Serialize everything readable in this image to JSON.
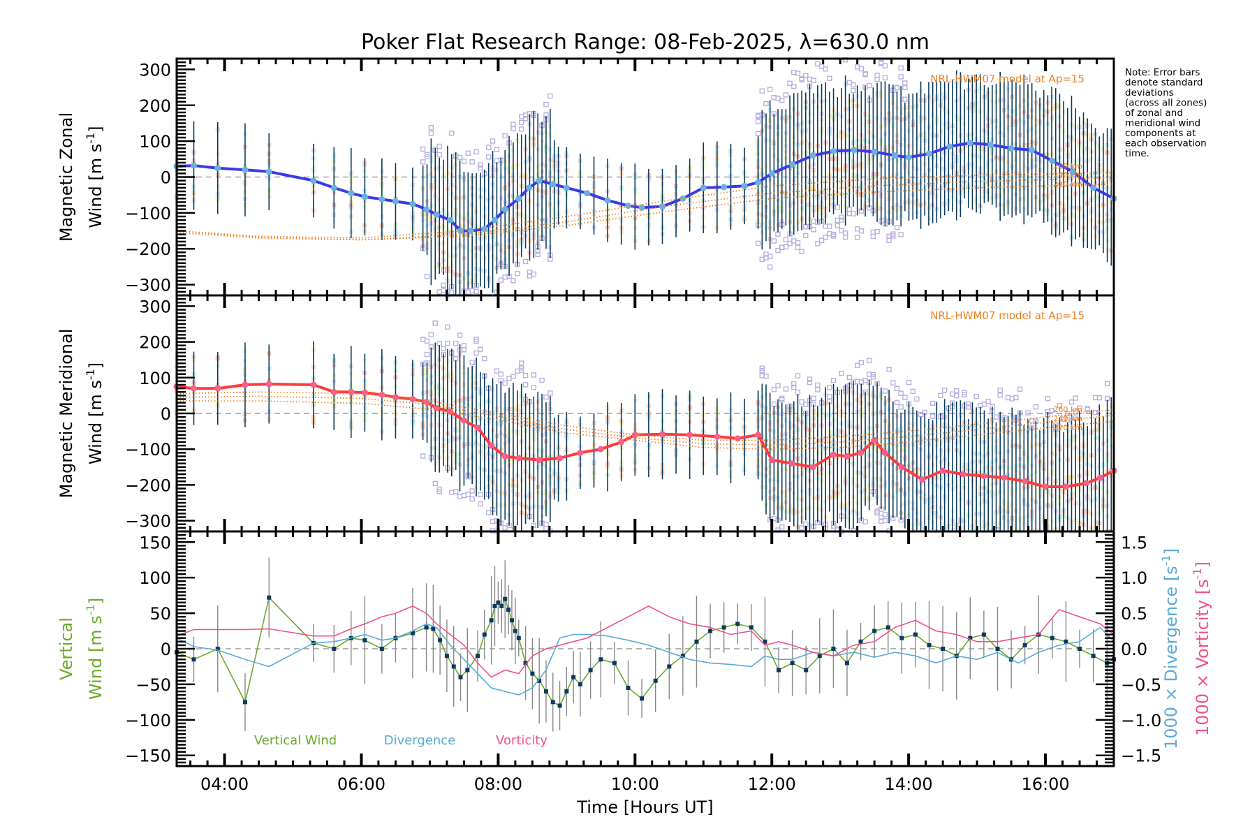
{
  "chart_data": [
    {
      "panel": "zonal",
      "type": "line",
      "title": "Poker Flat Research Range: 08-Feb-2025, λ=630.0 nm",
      "ylabel_line1": "Magnetic Zonal",
      "ylabel_line2": "Wind [m s",
      "ylabel_sup": "-1",
      "ylabel_close": "]",
      "ylim": [
        -330,
        330
      ],
      "yticks": [
        -300,
        -200,
        -100,
        0,
        100,
        200,
        300
      ],
      "ytick_labels": [
        "−300",
        "−200",
        "−100",
        "0",
        "100",
        "200",
        "300"
      ],
      "xlim": [
        3.3,
        17.0
      ],
      "model_label": "NRL-HWM07 model at Ap=15",
      "model_altitudes": [
        "260 km",
        "240 km",
        "220 km"
      ],
      "series": [
        {
          "name": "Mean zonal wind",
          "color": "#3a3ae8",
          "x": [
            3.3,
            3.55,
            3.9,
            4.3,
            4.65,
            5.3,
            5.6,
            5.85,
            6.05,
            6.3,
            6.5,
            6.75,
            6.95,
            7.1,
            7.3,
            7.45,
            7.6,
            7.8,
            7.95,
            8.1,
            8.3,
            8.45,
            8.6,
            8.8,
            9.0,
            9.3,
            9.6,
            9.9,
            10.1,
            10.4,
            10.7,
            11.0,
            11.3,
            11.6,
            11.8,
            12.0,
            12.3,
            12.6,
            12.9,
            13.2,
            13.5,
            13.8,
            14.0,
            14.3,
            14.6,
            14.9,
            15.2,
            15.5,
            15.8,
            16.1,
            16.4,
            16.7,
            17.0
          ],
          "values": [
            30,
            32,
            25,
            20,
            15,
            -10,
            -30,
            -45,
            -55,
            -62,
            -68,
            -75,
            -90,
            -105,
            -120,
            -150,
            -150,
            -145,
            -120,
            -90,
            -60,
            -30,
            -10,
            -20,
            -30,
            -45,
            -65,
            -80,
            -85,
            -82,
            -60,
            -30,
            -28,
            -25,
            -15,
            10,
            35,
            60,
            72,
            75,
            70,
            60,
            55,
            65,
            85,
            95,
            90,
            80,
            75,
            45,
            15,
            -30,
            -60
          ]
        },
        {
          "name": "NRL-HWM07 260 km",
          "color": "#f08020",
          "x": [
            3.3,
            4.5,
            6.0,
            7.5,
            9.0,
            10.5,
            12.0,
            13.5,
            15.0,
            16.5,
            17.0
          ],
          "values": [
            -150,
            -165,
            -170,
            -150,
            -110,
            -65,
            -25,
            -5,
            5,
            10,
            12
          ]
        },
        {
          "name": "NRL-HWM07 240 km",
          "color": "#f08020",
          "x": [
            3.3,
            4.5,
            6.0,
            7.5,
            9.0,
            10.5,
            12.0,
            13.5,
            15.0,
            16.5,
            17.0
          ],
          "values": [
            -150,
            -168,
            -175,
            -160,
            -125,
            -80,
            -45,
            -25,
            -12,
            -5,
            -2
          ]
        },
        {
          "name": "NRL-HWM07 220 km",
          "color": "#f08020",
          "x": [
            3.3,
            4.5,
            6.0,
            7.5,
            9.0,
            10.5,
            12.0,
            13.5,
            15.0,
            16.5,
            17.0
          ],
          "values": [
            -155,
            -170,
            -175,
            -165,
            -135,
            -95,
            -60,
            -42,
            -30,
            -22,
            -20
          ]
        }
      ],
      "error_bar_std_dev_m_s": "approx 90-220"
    },
    {
      "panel": "meridional",
      "type": "line",
      "ylabel_line1": "Magnetic Meridional",
      "ylabel_line2": "Wind [m s",
      "ylabel_sup": "-1",
      "ylabel_close": "]",
      "ylim": [
        -330,
        330
      ],
      "yticks": [
        -300,
        -200,
        -100,
        0,
        100,
        200,
        300
      ],
      "ytick_labels": [
        "−300",
        "−200",
        "−100",
        "0",
        "100",
        "200",
        "300"
      ],
      "xlim": [
        3.3,
        17.0
      ],
      "model_label": "NRL-HWM07 model at Ap=15",
      "model_altitudes": [
        "260 km",
        "240 km",
        "220 km"
      ],
      "series": [
        {
          "name": "Mean meridional wind",
          "color": "#ff3a3a",
          "x": [
            3.3,
            3.55,
            3.9,
            4.3,
            4.65,
            5.3,
            5.6,
            5.85,
            6.05,
            6.3,
            6.5,
            6.75,
            6.95,
            7.1,
            7.3,
            7.5,
            7.7,
            7.9,
            8.1,
            8.3,
            8.6,
            8.9,
            9.2,
            9.5,
            9.8,
            10.0,
            10.4,
            10.8,
            11.2,
            11.5,
            11.8,
            12.0,
            12.3,
            12.6,
            12.9,
            13.1,
            13.3,
            13.5,
            13.65,
            13.9,
            14.2,
            14.5,
            14.8,
            15.1,
            15.4,
            15.7,
            16.0,
            16.3,
            16.6,
            16.8,
            17.0
          ],
          "values": [
            75,
            70,
            70,
            80,
            82,
            80,
            60,
            60,
            58,
            52,
            45,
            40,
            32,
            15,
            5,
            -20,
            -40,
            -90,
            -120,
            -125,
            -130,
            -125,
            -110,
            -100,
            -80,
            -60,
            -58,
            -60,
            -65,
            -70,
            -60,
            -130,
            -140,
            -150,
            -115,
            -120,
            -110,
            -75,
            -110,
            -150,
            -185,
            -160,
            -170,
            -175,
            -180,
            -190,
            -205,
            -205,
            -195,
            -180,
            -160
          ]
        },
        {
          "name": "NRL-HWM07 260 km",
          "color": "#f08020",
          "x": [
            3.3,
            4.5,
            6.0,
            7.0,
            8.0,
            9.0,
            10.0,
            11.0,
            12.0,
            13.0,
            14.0,
            15.0,
            16.0,
            17.0
          ],
          "values": [
            55,
            60,
            55,
            35,
            0,
            -35,
            -60,
            -75,
            -75,
            -65,
            -50,
            -30,
            -10,
            10
          ]
        },
        {
          "name": "NRL-HWM07 240 km",
          "color": "#f08020",
          "x": [
            3.3,
            4.5,
            6.0,
            7.0,
            8.0,
            9.0,
            10.0,
            11.0,
            12.0,
            13.0,
            14.0,
            15.0,
            16.0,
            17.0
          ],
          "values": [
            45,
            48,
            42,
            25,
            -8,
            -45,
            -68,
            -85,
            -88,
            -80,
            -65,
            -45,
            -25,
            -5
          ]
        },
        {
          "name": "NRL-HWM07 220 km",
          "color": "#f08020",
          "x": [
            3.3,
            4.5,
            6.0,
            7.0,
            8.0,
            9.0,
            10.0,
            11.0,
            12.0,
            13.0,
            14.0,
            15.0,
            16.0,
            17.0
          ],
          "values": [
            35,
            35,
            28,
            12,
            -18,
            -55,
            -75,
            -95,
            -100,
            -95,
            -80,
            -60,
            -40,
            -22
          ]
        }
      ]
    },
    {
      "panel": "vertical",
      "type": "line",
      "xlabel": "Time [Hours UT]",
      "xlim": [
        3.3,
        17.0
      ],
      "xticks": [
        4,
        6,
        8,
        10,
        12,
        14,
        16
      ],
      "xtick_labels": [
        "04:00",
        "06:00",
        "08:00",
        "10:00",
        "12:00",
        "14:00",
        "16:00"
      ],
      "ylabel_line1": "Vertical",
      "ylabel_line2": "Wind [m s",
      "ylabel_sup": "-1",
      "ylabel_close": "]",
      "ylim": [
        -165,
        165
      ],
      "yticks": [
        -150,
        -100,
        -50,
        0,
        50,
        100,
        150
      ],
      "ytick_labels": [
        "−150",
        "−100",
        "−50",
        "0",
        "50",
        "100",
        "150"
      ],
      "y2lim": [
        -1.65,
        1.65
      ],
      "y2ticks": [
        -1.5,
        -1.0,
        -0.5,
        0.0,
        0.5,
        1.0,
        1.5
      ],
      "y2tick_labels": [
        "−1.5",
        "−1.0",
        "−0.5",
        "0.0",
        "0.5",
        "1.0",
        "1.5"
      ],
      "y2label_div": "1000 × Divergence [s",
      "y2label_vort": "1000 × Vorticity [s",
      "y2label_sup": "-1",
      "y2label_close": "]",
      "legend": [
        "Vertical Wind",
        "Divergence",
        "Vorticity"
      ],
      "legend_position": "bottom-left",
      "series": [
        {
          "name": "Vertical Wind",
          "color": "#6aaa2a",
          "axis": "left",
          "x": [
            3.3,
            3.55,
            3.9,
            4.3,
            4.65,
            5.3,
            5.6,
            5.85,
            6.05,
            6.3,
            6.5,
            6.75,
            6.95,
            7.05,
            7.15,
            7.25,
            7.35,
            7.45,
            7.55,
            7.7,
            7.8,
            7.9,
            7.95,
            8.0,
            8.05,
            8.1,
            8.15,
            8.2,
            8.25,
            8.3,
            8.4,
            8.5,
            8.6,
            8.7,
            8.8,
            8.9,
            9.0,
            9.1,
            9.2,
            9.35,
            9.5,
            9.7,
            9.9,
            10.1,
            10.3,
            10.5,
            10.7,
            10.9,
            11.1,
            11.3,
            11.5,
            11.7,
            11.9,
            12.1,
            12.3,
            12.5,
            12.7,
            12.9,
            13.1,
            13.3,
            13.5,
            13.7,
            13.9,
            14.1,
            14.3,
            14.5,
            14.7,
            14.9,
            15.1,
            15.3,
            15.5,
            15.7,
            15.9,
            16.1,
            16.3,
            16.5,
            16.7,
            16.9,
            17.0
          ],
          "values": [
            -5,
            -15,
            0,
            -75,
            72,
            8,
            0,
            15,
            12,
            0,
            15,
            22,
            30,
            28,
            12,
            -10,
            -25,
            -40,
            -30,
            -10,
            20,
            40,
            60,
            65,
            60,
            70,
            55,
            40,
            25,
            15,
            -20,
            -35,
            -45,
            -60,
            -75,
            -80,
            -60,
            -40,
            -50,
            -30,
            -15,
            -20,
            -55,
            -70,
            -45,
            -25,
            -10,
            10,
            25,
            30,
            35,
            30,
            10,
            -30,
            -20,
            -30,
            -10,
            0,
            -20,
            10,
            25,
            30,
            15,
            20,
            5,
            0,
            -10,
            15,
            20,
            0,
            -15,
            5,
            20,
            15,
            10,
            0,
            -10,
            -20,
            -15
          ]
        },
        {
          "name": "Divergence",
          "color": "#5aaad6",
          "axis": "right",
          "x": [
            3.3,
            3.55,
            3.9,
            4.3,
            4.65,
            5.3,
            5.6,
            5.85,
            6.05,
            6.3,
            6.5,
            6.75,
            6.95,
            7.1,
            7.3,
            7.5,
            7.7,
            7.9,
            8.1,
            8.3,
            8.5,
            8.7,
            8.9,
            9.1,
            9.3,
            9.6,
            9.9,
            10.2,
            10.5,
            10.8,
            11.1,
            11.4,
            11.7,
            11.9,
            12.1,
            12.3,
            12.6,
            12.9,
            13.2,
            13.5,
            13.8,
            14.1,
            14.4,
            14.7,
            15.0,
            15.3,
            15.6,
            15.9,
            16.2,
            16.5,
            16.8,
            17.0
          ],
          "values": [
            0.15,
            0.03,
            -0.02,
            -0.15,
            -0.25,
            0.08,
            0.1,
            0.15,
            0.2,
            0.12,
            0.15,
            0.25,
            0.35,
            0.3,
            0.05,
            -0.15,
            -0.35,
            -0.55,
            -0.6,
            -0.65,
            -0.55,
            -0.3,
            0.15,
            0.2,
            0.2,
            0.18,
            0.12,
            0.05,
            -0.05,
            -0.15,
            -0.2,
            -0.22,
            -0.25,
            -0.1,
            -0.15,
            -0.15,
            -0.05,
            -0.1,
            -0.05,
            -0.12,
            -0.05,
            -0.1,
            -0.2,
            -0.1,
            -0.15,
            -0.05,
            -0.2,
            -0.05,
            0.05,
            0.1,
            0.3,
            0.1
          ]
        },
        {
          "name": "Vorticity",
          "color": "#f0508a",
          "axis": "right",
          "x": [
            3.3,
            3.55,
            3.9,
            4.3,
            4.65,
            5.3,
            5.6,
            5.85,
            6.05,
            6.3,
            6.5,
            6.75,
            6.95,
            7.1,
            7.3,
            7.5,
            7.7,
            7.9,
            8.1,
            8.3,
            8.5,
            8.7,
            8.9,
            9.1,
            9.3,
            9.6,
            9.9,
            10.2,
            10.5,
            10.8,
            11.1,
            11.4,
            11.7,
            11.9,
            12.1,
            12.3,
            12.6,
            12.9,
            13.2,
            13.5,
            13.8,
            14.1,
            14.4,
            14.7,
            15.0,
            15.3,
            15.6,
            15.9,
            16.2,
            16.5,
            16.8,
            17.0
          ],
          "values": [
            0.18,
            0.27,
            0.27,
            0.27,
            0.28,
            0.18,
            0.18,
            0.28,
            0.35,
            0.45,
            0.5,
            0.6,
            0.5,
            0.35,
            0.2,
            0.05,
            -0.2,
            -0.4,
            -0.3,
            -0.35,
            -0.1,
            0.0,
            0.05,
            0.1,
            0.15,
            0.3,
            0.45,
            0.6,
            0.45,
            0.35,
            0.3,
            0.2,
            0.25,
            0.05,
            0.1,
            0.05,
            -0.05,
            -0.1,
            0.05,
            0.1,
            0.3,
            0.4,
            0.25,
            0.2,
            0.1,
            0.1,
            0.15,
            0.2,
            0.55,
            0.45,
            0.35,
            0.2
          ]
        }
      ]
    }
  ],
  "note": {
    "lines": [
      "Note: Error bars",
      "denote standard",
      "deviations",
      "(across all zones)",
      "of zonal and",
      "meridional wind",
      "components at",
      "each observation",
      "time."
    ]
  }
}
